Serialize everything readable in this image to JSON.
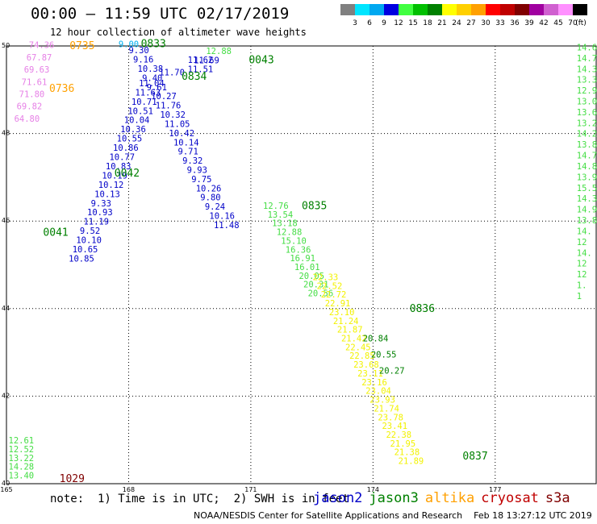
{
  "header": {
    "title": "00:00 — 11:59 UTC 02/17/2019",
    "subtitle": "12 hour collection of altimeter wave heights"
  },
  "scale": {
    "unit": "(ft)",
    "bins": [
      {
        "label": "3",
        "color": "#808080"
      },
      {
        "label": "6",
        "color": "#00e5ff"
      },
      {
        "label": "9",
        "color": "#00a8f0"
      },
      {
        "label": "12",
        "color": "#0000e0"
      },
      {
        "label": "15",
        "color": "#40ff40"
      },
      {
        "label": "18",
        "color": "#00c000"
      },
      {
        "label": "21",
        "color": "#008000"
      },
      {
        "label": "24",
        "color": "#ffff00"
      },
      {
        "label": "27",
        "color": "#ffd000"
      },
      {
        "label": "30",
        "color": "#ffa000"
      },
      {
        "label": "33",
        "color": "#ff0000"
      },
      {
        "label": "36",
        "color": "#c00000"
      },
      {
        "label": "39",
        "color": "#800000"
      },
      {
        "label": "42",
        "color": "#a000a0"
      },
      {
        "label": "45",
        "color": "#d060d0"
      },
      {
        "label": "70",
        "color": "#ff90ff"
      },
      {
        "label": "",
        "color": "#000000"
      }
    ]
  },
  "axes": {
    "lon_ticks": [
      "165",
      "168",
      "171",
      "174",
      "177"
    ],
    "lat_ticks": [
      "50",
      "48",
      "46",
      "44",
      "42",
      "40"
    ]
  },
  "colors": {
    "jason2": "#0000c8",
    "jason3": "#008000",
    "jason3_light": "#44dd44",
    "altika": "#ffa000",
    "altika_light": "#f2f200",
    "cryosat": "#c00000",
    "s3a": "#800000",
    "pink": "#e680e6",
    "cyan": "#00b0f0"
  },
  "tracks": [
    {
      "satellite": "altika",
      "color_key": "pink",
      "start_lon": 165.55,
      "start_lat": 49.95,
      "lon_step": -0.06,
      "lat_step": -0.28,
      "values": [
        "74.36",
        "67.87",
        "69.63",
        "71.61",
        "71.80",
        "69.82",
        "64.80"
      ]
    },
    {
      "satellite": "jason2",
      "color_key": "jason2",
      "start_lon": 168.0,
      "start_lat": 49.83,
      "lon_step": 0.11,
      "lat_step": -0.21,
      "values": [
        "9.30",
        "9.16",
        "10.38",
        "9.40",
        "9.61",
        "10.27",
        "11.76",
        "10.32",
        "11.05",
        "10.42",
        "10.14",
        "9.71",
        "9.32",
        "9.93",
        "9.75",
        "10.26",
        "9.80",
        "9.24",
        "10.16",
        "11.48"
      ]
    },
    {
      "satellite": "jason2",
      "color_key": "jason2",
      "start_lon": 168.25,
      "start_lat": 49.08,
      "lon_step": -0.0906,
      "lat_step": -0.2108,
      "values": [
        "11.04",
        "11.63",
        "10.71",
        "10.51",
        "10.04",
        "10.36",
        "10.55",
        "10.86",
        "10.77",
        "10.83",
        "10.19",
        "10.12",
        "10.13",
        "9.33",
        "10.93",
        "11.19",
        "9.52",
        "10.10",
        "10.65",
        "10.85"
      ]
    },
    {
      "satellite": "jason2",
      "color_key": "jason2",
      "start_lon": 169.45,
      "start_lat": 49.4,
      "lon_step": 0.0,
      "lat_step": 0.21,
      "values": [
        "11.51",
        "11.62"
      ]
    },
    {
      "satellite": "jason3",
      "color_key": "jason3_light",
      "start_lon": 171.3,
      "start_lat": 46.28,
      "lon_step": 0.11,
      "lat_step": -0.2,
      "values": [
        "12.76",
        "13.54",
        "13.18",
        "12.88",
        "15.10",
        "16.36",
        "16.91",
        "16.01",
        "20.05",
        "20.31",
        "20.56"
      ]
    },
    {
      "satellite": "altika",
      "color_key": "altika_light",
      "start_lon": 172.52,
      "start_lat": 44.65,
      "lon_step": 0.1,
      "lat_step": -0.2,
      "values": [
        "22.33",
        "22.52",
        "22.72",
        "22.91",
        "23.10",
        "21.24",
        "21.87",
        "21.42",
        "22.45",
        "22.85",
        "23.68",
        "23.11",
        "23.16",
        "23.04",
        "23.93",
        "21.74",
        "23.78",
        "23.41",
        "22.38",
        "21.95",
        "21.38",
        "21.89"
      ]
    },
    {
      "satellite": "jason3",
      "color_key": "jason3",
      "start_lon": 173.75,
      "start_lat": 43.25,
      "lon_step": 0.2,
      "lat_step": -0.37,
      "values": [
        "20.84",
        "20.55",
        "20.27"
      ]
    },
    {
      "satellite": "jason3",
      "color_key": "jason3_light",
      "start_lon": 179.0,
      "start_lat": 49.9,
      "lon_step": 0.0,
      "lat_step": -0.247,
      "values": [
        "14.61",
        "14.77",
        "14.36",
        "13.30",
        "12.94",
        "13.07",
        "13.61",
        "13.22",
        "14.23",
        "13.82",
        "14.72",
        "14.87",
        "13.96",
        "15.54",
        "14.3",
        "14.9",
        "13.8",
        "14.",
        "12",
        "14.",
        "12",
        "12",
        "1.",
        "1"
      ]
    },
    {
      "satellite": "jason3",
      "color_key": "jason3_light",
      "start_lon": 165.05,
      "start_lat": 40.92,
      "lon_step": 0.0,
      "lat_step": -0.2,
      "values": [
        "12.61",
        "12.52",
        "13.22",
        "14.28",
        "13.40"
      ]
    }
  ],
  "single_labels": [
    {
      "text": "9.00",
      "color_key": "cyan",
      "lon": 167.75,
      "lat": 49.97
    },
    {
      "text": "12.88",
      "color_key": "jason3_light",
      "lon": 169.9,
      "lat": 49.82
    },
    {
      "text": "11.69",
      "color_key": "jason2",
      "lon": 169.6,
      "lat": 49.6
    },
    {
      "text": "11.70",
      "color_key": "jason2",
      "lon": 168.75,
      "lat": 49.33
    }
  ],
  "time_labels": [
    {
      "text": "0735",
      "color_key": "altika",
      "lon": 166.55,
      "lat": 49.93
    },
    {
      "text": "0736",
      "color_key": "altika",
      "lon": 166.05,
      "lat": 48.95
    },
    {
      "text": "0833",
      "color_key": "jason3",
      "lon": 168.3,
      "lat": 49.97
    },
    {
      "text": "0043",
      "color_key": "jason3",
      "lon": 170.95,
      "lat": 49.6
    },
    {
      "text": "0834",
      "color_key": "jason3",
      "lon": 169.3,
      "lat": 49.23
    },
    {
      "text": "0042",
      "color_key": "jason3",
      "lon": 167.65,
      "lat": 47.02
    },
    {
      "text": "0041",
      "color_key": "jason3",
      "lon": 165.9,
      "lat": 45.66
    },
    {
      "text": "0835",
      "color_key": "jason3",
      "lon": 172.25,
      "lat": 46.27
    },
    {
      "text": "0836",
      "color_key": "jason3",
      "lon": 174.9,
      "lat": 43.92
    },
    {
      "text": "0837",
      "color_key": "jason3",
      "lon": 176.2,
      "lat": 40.55
    },
    {
      "text": "1029",
      "color_key": "s3a",
      "lon": 166.3,
      "lat": 40.04
    }
  ],
  "footer": {
    "note": "note:  1) Time is in UTC;  2) SWH is in feet",
    "credit": "NOAA/NESDIS Center for Satellite Applications and Research    Feb 18 13:27:12 UTC 2019"
  },
  "legend": [
    {
      "label": "jason2",
      "color_key": "jason2"
    },
    {
      "label": "jason3",
      "color_key": "jason3"
    },
    {
      "label": "altika",
      "color_key": "altika"
    },
    {
      "label": "cryosat",
      "color_key": "cryosat"
    },
    {
      "label": "s3a",
      "color_key": "s3a"
    }
  ]
}
